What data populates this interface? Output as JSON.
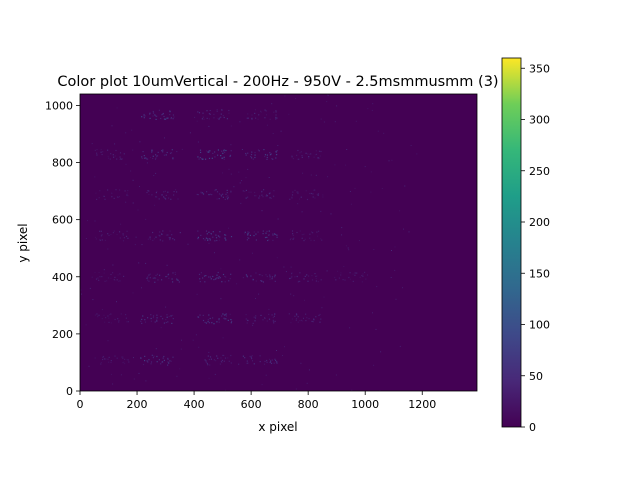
{
  "chart_data": {
    "type": "heatmap",
    "title": "Color plot 10umVertical - 200Hz - 950V - 2.5msmmusmm (3)",
    "xlabel": "x pixel",
    "ylabel": "y pixel",
    "xlim": [
      0,
      1392
    ],
    "ylim": [
      0,
      1040
    ],
    "x_ticks": [
      0,
      200,
      400,
      600,
      800,
      1000,
      1200
    ],
    "y_ticks": [
      0,
      200,
      400,
      600,
      800,
      1000
    ],
    "colorbar": {
      "range": [
        0,
        360
      ],
      "ticks": [
        0,
        50,
        100,
        150,
        200,
        250,
        300,
        350
      ],
      "colormap": "viridis"
    },
    "background_value": 0,
    "hotspots": [
      {
        "x": 110,
        "y": 110,
        "value": 30
      },
      {
        "x": 270,
        "y": 110,
        "value": 60
      },
      {
        "x": 470,
        "y": 110,
        "value": 40
      },
      {
        "x": 630,
        "y": 110,
        "value": 50
      },
      {
        "x": 110,
        "y": 255,
        "value": 30
      },
      {
        "x": 270,
        "y": 255,
        "value": 55
      },
      {
        "x": 470,
        "y": 255,
        "value": 70
      },
      {
        "x": 630,
        "y": 255,
        "value": 40
      },
      {
        "x": 790,
        "y": 255,
        "value": 40
      },
      {
        "x": 110,
        "y": 400,
        "value": 30
      },
      {
        "x": 290,
        "y": 400,
        "value": 55
      },
      {
        "x": 470,
        "y": 400,
        "value": 60
      },
      {
        "x": 630,
        "y": 400,
        "value": 55
      },
      {
        "x": 790,
        "y": 400,
        "value": 40
      },
      {
        "x": 950,
        "y": 400,
        "value": 30
      },
      {
        "x": 110,
        "y": 545,
        "value": 35
      },
      {
        "x": 290,
        "y": 545,
        "value": 45
      },
      {
        "x": 470,
        "y": 545,
        "value": 75
      },
      {
        "x": 630,
        "y": 545,
        "value": 70
      },
      {
        "x": 790,
        "y": 545,
        "value": 35
      },
      {
        "x": 110,
        "y": 690,
        "value": 30
      },
      {
        "x": 290,
        "y": 690,
        "value": 45
      },
      {
        "x": 470,
        "y": 690,
        "value": 55
      },
      {
        "x": 630,
        "y": 690,
        "value": 45
      },
      {
        "x": 790,
        "y": 690,
        "value": 35
      },
      {
        "x": 110,
        "y": 830,
        "value": 35
      },
      {
        "x": 270,
        "y": 830,
        "value": 60
      },
      {
        "x": 470,
        "y": 830,
        "value": 80
      },
      {
        "x": 630,
        "y": 830,
        "value": 60
      },
      {
        "x": 790,
        "y": 830,
        "value": 40
      },
      {
        "x": 270,
        "y": 970,
        "value": 70
      },
      {
        "x": 470,
        "y": 970,
        "value": 45
      },
      {
        "x": 630,
        "y": 970,
        "value": 40
      }
    ]
  }
}
